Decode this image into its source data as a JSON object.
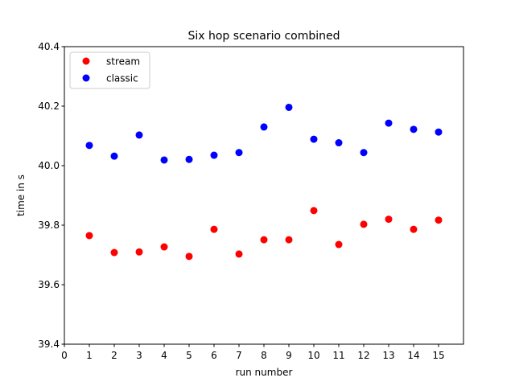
{
  "chart_data": {
    "type": "scatter",
    "title": "Six hop scenario combined",
    "xlabel": "run number",
    "ylabel": "time in s",
    "xlim": [
      0,
      16
    ],
    "ylim": [
      39.4,
      40.4
    ],
    "xticks": [
      0,
      1,
      2,
      3,
      4,
      5,
      6,
      7,
      8,
      9,
      10,
      11,
      12,
      13,
      14,
      15
    ],
    "yticks": [
      39.4,
      39.6,
      39.8,
      40.0,
      40.2,
      40.4
    ],
    "ytick_labels": [
      "39.4",
      "39.6",
      "39.8",
      "40.0",
      "40.2",
      "40.4"
    ],
    "grid": false,
    "legend_position": "upper-left",
    "series": [
      {
        "name": "stream",
        "color": "#ff0000",
        "x": [
          1,
          2,
          3,
          4,
          5,
          6,
          7,
          8,
          9,
          10,
          11,
          12,
          13,
          14,
          15
        ],
        "y": [
          39.765,
          39.708,
          39.71,
          39.727,
          39.695,
          39.786,
          39.703,
          39.751,
          39.751,
          39.849,
          39.735,
          39.803,
          39.82,
          39.786,
          39.817
        ]
      },
      {
        "name": "classic",
        "color": "#0000ff",
        "x": [
          1,
          2,
          3,
          4,
          5,
          6,
          7,
          8,
          9,
          10,
          11,
          12,
          13,
          14,
          15
        ],
        "y": [
          40.068,
          40.032,
          40.103,
          40.019,
          40.021,
          40.035,
          40.044,
          40.13,
          40.196,
          40.089,
          40.077,
          40.044,
          40.143,
          40.122,
          40.113
        ]
      }
    ]
  }
}
